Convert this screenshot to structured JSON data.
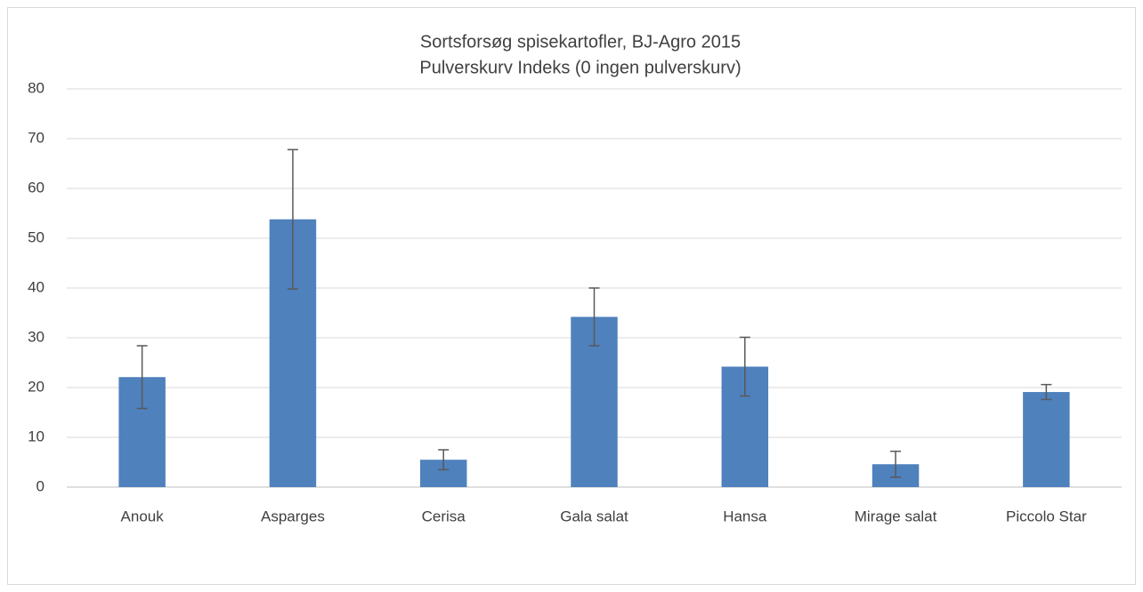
{
  "chart_data": {
    "type": "bar",
    "title": "Sortsforsøg spisekartofler, BJ-Agro 2015",
    "subtitle": "Pulverskurv Indeks (0 ingen pulverskurv)",
    "categories": [
      "Anouk",
      "Asparges",
      "Cerisa",
      "Gala salat",
      "Hansa",
      "Mirage salat",
      "Piccolo Star"
    ],
    "values": [
      22.1,
      53.8,
      5.5,
      34.2,
      24.2,
      4.6,
      19.1
    ],
    "errors": [
      6.3,
      14,
      2,
      5.8,
      5.9,
      2.6,
      1.5
    ],
    "color": "#4f81bd",
    "ylim": [
      0,
      80
    ],
    "yticks": [
      0,
      10,
      20,
      30,
      40,
      50,
      60,
      70,
      80
    ],
    "grid": true
  }
}
